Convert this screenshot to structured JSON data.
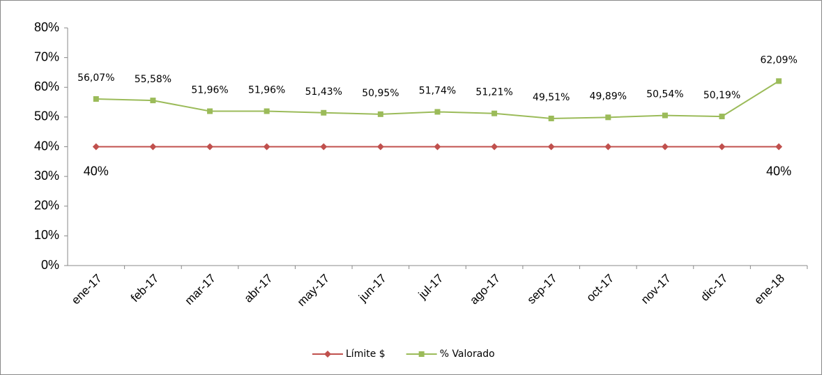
{
  "chart_data": {
    "type": "line",
    "categories": [
      "ene-17",
      "feb-17",
      "mar-17",
      "abr-17",
      "may-17",
      "jun-17",
      "jul-17",
      "ago-17",
      "sep-17",
      "oct-17",
      "nov-17",
      "dic-17",
      "ene-18"
    ],
    "series": [
      {
        "name": "Límite $",
        "color": "#c0504d",
        "marker": "diamond",
        "values": [
          40,
          40,
          40,
          40,
          40,
          40,
          40,
          40,
          40,
          40,
          40,
          40,
          40
        ],
        "value_labels": [
          "40%",
          null,
          null,
          null,
          null,
          null,
          null,
          null,
          null,
          null,
          null,
          null,
          "40%"
        ]
      },
      {
        "name": "% Valorado",
        "color": "#9bbb59",
        "marker": "square",
        "values": [
          56.07,
          55.58,
          51.96,
          51.96,
          51.43,
          50.95,
          51.74,
          51.21,
          49.51,
          49.89,
          50.54,
          50.19,
          62.09
        ],
        "value_labels": [
          "56,07%",
          "55,58%",
          "51,96%",
          "51,96%",
          "51,43%",
          "50,95%",
          "51,74%",
          "51,21%",
          "49,51%",
          "49,89%",
          "50,54%",
          "50,19%",
          "62,09%"
        ]
      }
    ],
    "ylim": [
      0,
      80
    ],
    "yticks": [
      {
        "value": 0,
        "label": "0%"
      },
      {
        "value": 10,
        "label": "10%"
      },
      {
        "value": 20,
        "label": "20%"
      },
      {
        "value": 30,
        "label": "30%"
      },
      {
        "value": 40,
        "label": "40%"
      },
      {
        "value": 50,
        "label": "50%"
      },
      {
        "value": 60,
        "label": "60%"
      },
      {
        "value": 70,
        "label": "70%"
      },
      {
        "value": 80,
        "label": "80%"
      }
    ],
    "grid": false,
    "legend": "bottom"
  }
}
